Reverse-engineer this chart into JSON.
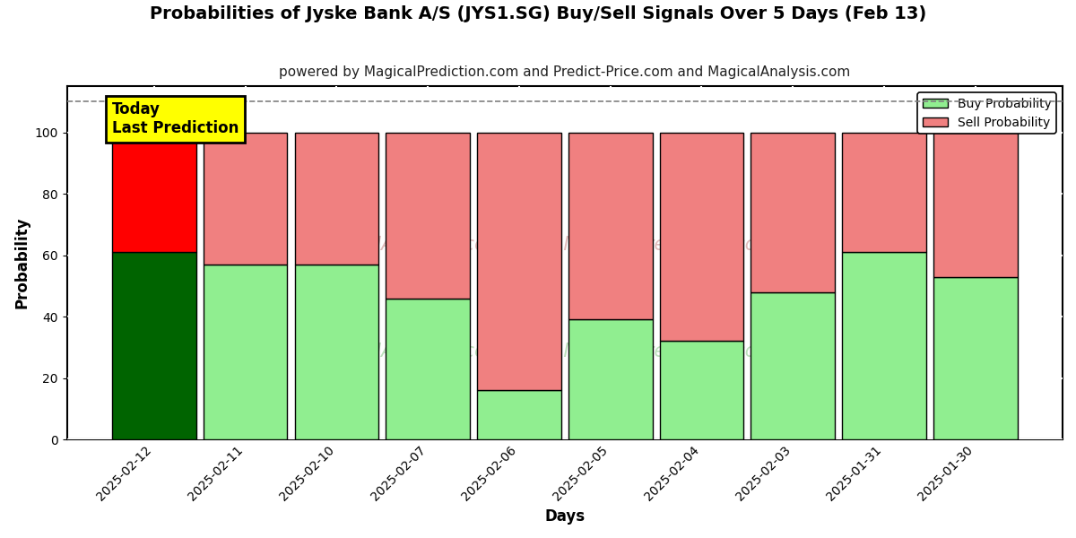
{
  "title": "Probabilities of Jyske Bank A/S (JYS1.SG) Buy/Sell Signals Over 5 Days (Feb 13)",
  "subtitle": "powered by MagicalPrediction.com and Predict-Price.com and MagicalAnalysis.com",
  "xlabel": "Days",
  "ylabel": "Probability",
  "categories": [
    "2025-02-12",
    "2025-02-11",
    "2025-02-10",
    "2025-02-07",
    "2025-02-06",
    "2025-02-05",
    "2025-02-04",
    "2025-02-03",
    "2025-01-31",
    "2025-01-30"
  ],
  "buy_values": [
    61,
    57,
    57,
    46,
    16,
    39,
    32,
    48,
    61,
    53
  ],
  "sell_values": [
    39,
    43,
    43,
    54,
    84,
    61,
    68,
    52,
    39,
    47
  ],
  "today_buy_color": "#006400",
  "today_sell_color": "#FF0000",
  "buy_color": "#90EE90",
  "sell_color": "#F08080",
  "bar_edge_color": "#000000",
  "today_annotation_text": "Today\nLast Prediction",
  "today_annotation_bg": "#FFFF00",
  "today_annotation_edge": "#000000",
  "dashed_line_y": 110,
  "ylim": [
    0,
    115
  ],
  "yticks": [
    0,
    20,
    40,
    60,
    80,
    100
  ],
  "grid_color": "#FFFFFF",
  "bg_color": "#FFFFFF",
  "fig_bg_color": "#FFFFFF",
  "watermark_lines": [
    "calAnalysis.com    MagicalPrediction.com",
    "calAnalysis.com    MagicalPrediction.com"
  ],
  "watermark_color": "#E8C8C8",
  "watermark_color2": "#C8E8C8",
  "title_fontsize": 14,
  "subtitle_fontsize": 11,
  "legend_buy_label": "Buy Probability",
  "legend_sell_label": "Sell Probability"
}
